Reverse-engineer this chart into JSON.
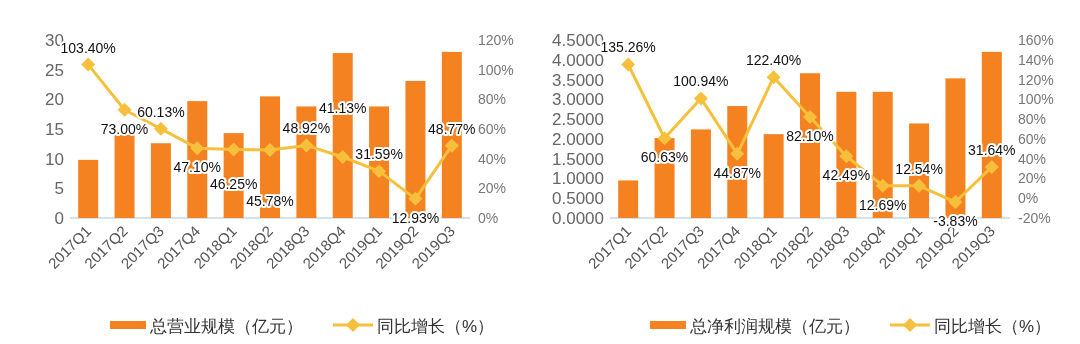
{
  "chart_data": [
    {
      "type": "bar",
      "categories": [
        "2017Q1",
        "2017Q2",
        "2017Q3",
        "2017Q4",
        "2018Q1",
        "2018Q2",
        "2018Q3",
        "2018Q4",
        "2019Q1",
        "2019Q2",
        "2019Q3"
      ],
      "ylim": [
        0,
        30
      ],
      "yticks": [
        0,
        5,
        10,
        15,
        20,
        25,
        30
      ],
      "y2lim": [
        0,
        120
      ],
      "y2ticks": [
        {
          "value": 0,
          "label": "0%"
        },
        {
          "value": 20,
          "label": "20%"
        },
        {
          "value": 40,
          "label": "40%"
        },
        {
          "value": 60,
          "label": "60%"
        },
        {
          "value": 80,
          "label": "80%"
        },
        {
          "value": 100,
          "label": "100%"
        },
        {
          "value": 120,
          "label": "120%"
        }
      ],
      "legend": "bottom",
      "marker": "diamond",
      "series": [
        {
          "name": "总营业规模（亿元）",
          "color": "#f58220",
          "values": [
            9.8,
            14.0,
            12.6,
            19.7,
            14.3,
            20.5,
            18.8,
            27.8,
            18.8,
            23.1,
            28.0
          ]
        },
        {
          "name": "同比增长（%）",
          "type": "line",
          "axis": "y2",
          "color": "#f7c03c",
          "values": [
            103.4,
            73.0,
            60.13,
            47.1,
            46.25,
            45.78,
            48.92,
            41.13,
            31.59,
            12.93,
            48.77
          ],
          "value_labels": [
            "103.40%",
            "73.00%",
            "60.13%",
            "47.10%",
            "46.25%",
            "45.78%",
            "48.92%",
            "41.13%",
            "31.59%",
            "12.93%",
            "48.77%"
          ]
        }
      ]
    },
    {
      "type": "bar",
      "categories": [
        "2017Q1",
        "2017Q2",
        "2017Q3",
        "2017Q4",
        "2018Q1",
        "2018Q2",
        "2018Q3",
        "2018Q4",
        "2019Q1",
        "2019Q2",
        "2019Q3"
      ],
      "ylim": [
        0,
        4.5
      ],
      "yticks": [
        {
          "value": 0,
          "label": "0.0000"
        },
        {
          "value": 0.5,
          "label": "0.5000"
        },
        {
          "value": 1,
          "label": "1.0000"
        },
        {
          "value": 1.5,
          "label": "1.5000"
        },
        {
          "value": 2,
          "label": "2.0000"
        },
        {
          "value": 2.5,
          "label": "2.5000"
        },
        {
          "value": 3,
          "label": "3.0000"
        },
        {
          "value": 3.5,
          "label": "3.5000"
        },
        {
          "value": 4,
          "label": "4.0000"
        },
        {
          "value": 4.5,
          "label": "4.5000"
        }
      ],
      "y2lim": [
        -20,
        160
      ],
      "y2ticks": [
        {
          "value": -20,
          "label": "-20%"
        },
        {
          "value": 0,
          "label": "0%"
        },
        {
          "value": 20,
          "label": "20%"
        },
        {
          "value": 40,
          "label": "40%"
        },
        {
          "value": 60,
          "label": "60%"
        },
        {
          "value": 80,
          "label": "80%"
        },
        {
          "value": 100,
          "label": "100%"
        },
        {
          "value": 120,
          "label": "120%"
        },
        {
          "value": 140,
          "label": "140%"
        },
        {
          "value": 160,
          "label": "160%"
        }
      ],
      "legend": "bottom",
      "marker": "diamond",
      "series": [
        {
          "name": "总净利润规模（亿元）",
          "color": "#f58220",
          "values": [
            0.95,
            2.02,
            2.24,
            2.83,
            2.12,
            3.66,
            3.19,
            3.19,
            2.39,
            3.53,
            4.2
          ]
        },
        {
          "name": "同比增长（%）",
          "type": "line",
          "axis": "y2",
          "color": "#f7c03c",
          "values": [
            135.26,
            60.63,
            100.94,
            44.87,
            122.4,
            82.1,
            42.49,
            12.69,
            12.54,
            -3.83,
            31.64
          ],
          "value_labels": [
            "135.26%",
            "60.63%",
            "100.94%",
            "44.87%",
            "122.40%",
            "82.10%",
            "42.49%",
            "12.69%",
            "12.54%",
            "-3.83%",
            "31.64%"
          ]
        }
      ]
    }
  ]
}
